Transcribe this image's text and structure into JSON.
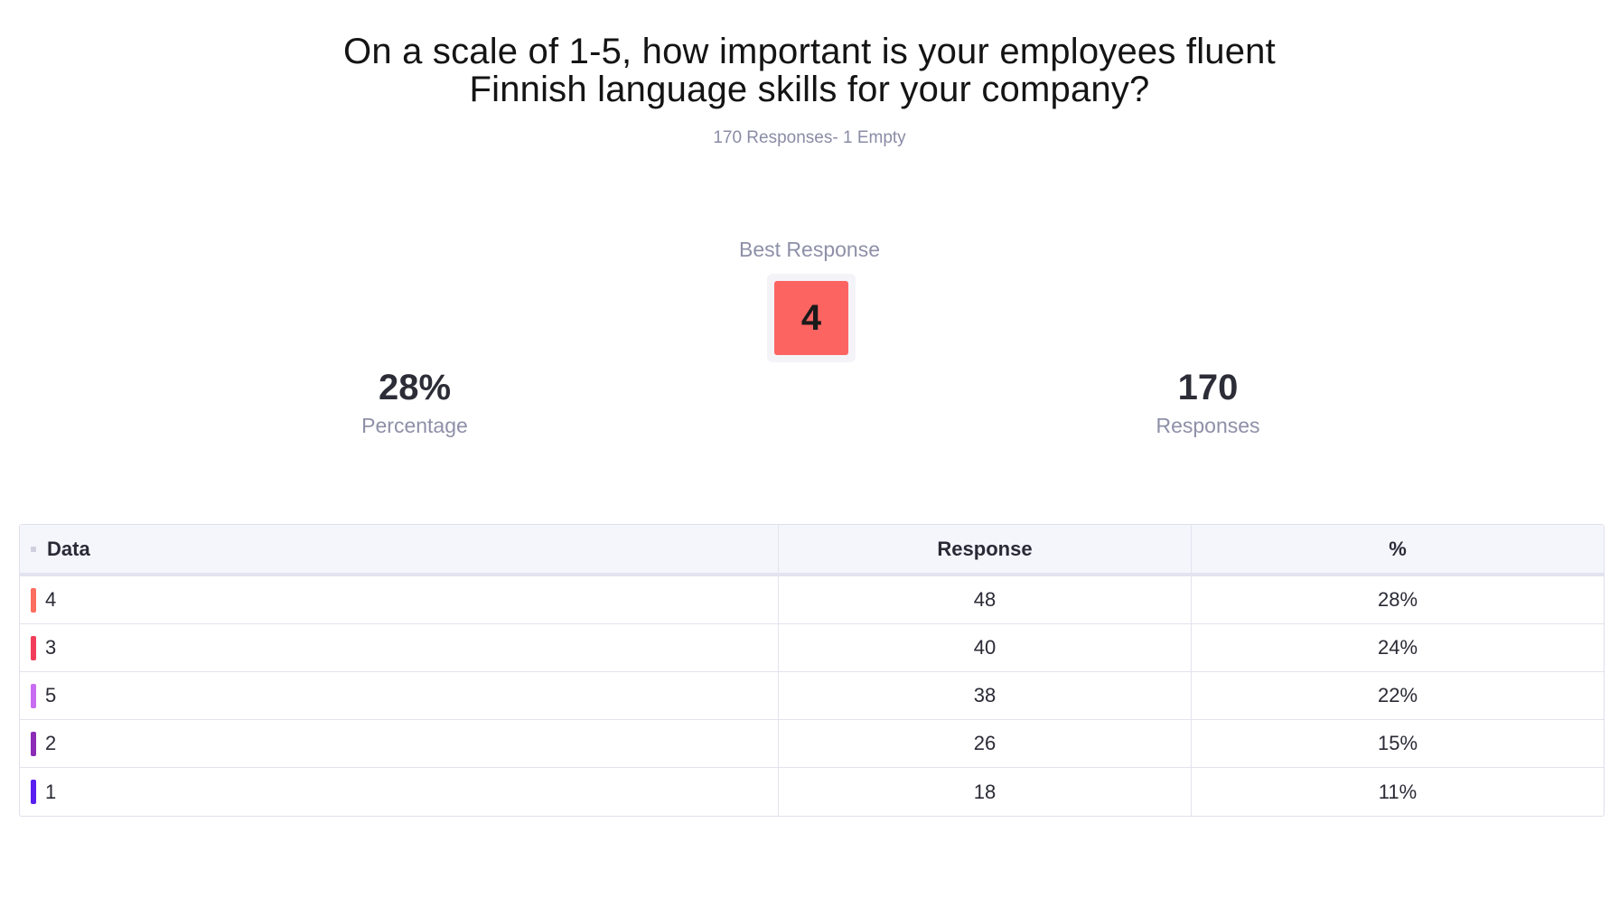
{
  "title_line1": "On a scale of 1-5, how important is your employees fluent",
  "title_line2": "Finnish language skills for your company?",
  "subtitle": "170 Responses- 1 Empty",
  "best_response": {
    "label": "Best Response",
    "value": "4",
    "color": "#fc6462"
  },
  "stats": {
    "percentage": {
      "value": "28%",
      "label": "Percentage"
    },
    "responses": {
      "value": "170",
      "label": "Responses"
    }
  },
  "table": {
    "headers": {
      "data": "Data",
      "response": "Response",
      "pct": "%"
    },
    "rows": [
      {
        "data": "4",
        "response": "48",
        "pct": "28%",
        "color": "#fc6e5e"
      },
      {
        "data": "3",
        "response": "40",
        "pct": "24%",
        "color": "#f23d5a"
      },
      {
        "data": "5",
        "response": "38",
        "pct": "22%",
        "color": "#c86df2"
      },
      {
        "data": "2",
        "response": "26",
        "pct": "15%",
        "color": "#8b2bb6"
      },
      {
        "data": "1",
        "response": "18",
        "pct": "11%",
        "color": "#5a1ef0"
      }
    ]
  }
}
